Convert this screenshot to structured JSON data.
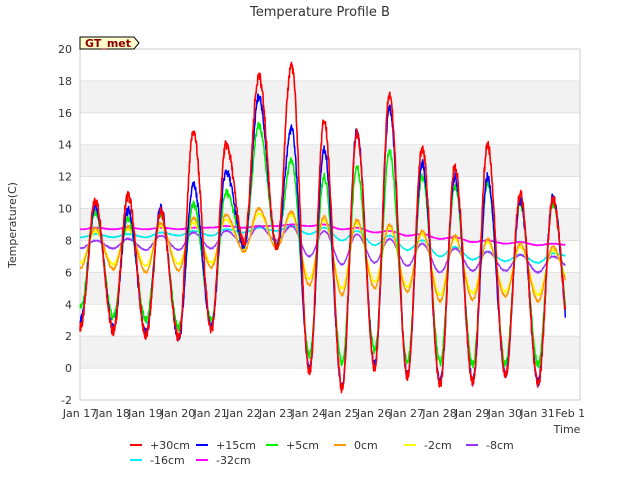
{
  "chart_data": {
    "type": "line",
    "title": "Temperature Profile B",
    "xlabel": "Time",
    "ylabel": "Temperature(C)",
    "annotation": "GT_met",
    "ylim": [
      -2,
      20
    ],
    "yticks": [
      -2,
      0,
      2,
      4,
      6,
      8,
      10,
      12,
      14,
      16,
      18,
      20
    ],
    "xlim": [
      0,
      15.3
    ],
    "xticks": [
      0,
      1,
      2,
      3,
      4,
      5,
      6,
      7,
      8,
      9,
      10,
      11,
      12,
      13,
      14,
      15
    ],
    "xtick_labels": [
      "Jan 17",
      "Jan 18",
      "Jan 19",
      "Jan 20",
      "Jan 21",
      "Jan 22",
      "Jan 23",
      "Jan 24",
      "Jan 25",
      "Jan 26",
      "Jan 27",
      "Jan 28",
      "Jan 29",
      "Jan 30",
      "Jan 31",
      "Feb 1"
    ],
    "x_end": 14.85,
    "grid": "horizontal bands",
    "legend_placement": "bottom",
    "daily_peak_time": 0.47,
    "series": [
      {
        "name": "+30cm",
        "color": "#ff0000",
        "width": 1.6,
        "peaks": [
          10.5,
          10.8,
          9.8,
          14.8,
          14.0,
          18.3,
          19.0,
          15.5,
          14.7,
          17.1,
          13.8,
          12.6,
          14.0,
          10.9,
          10.6
        ],
        "mins": [
          2.6,
          2.3,
          2.0,
          1.9,
          2.4,
          7.8,
          7.5,
          -0.3,
          -1.3,
          0.0,
          -0.5,
          -1.1,
          -0.9,
          -0.5,
          -1.0,
          1.6
        ]
      },
      {
        "name": "+15cm",
        "color": "#0000ff",
        "width": 1.5,
        "peaks": [
          10.2,
          9.9,
          10.0,
          11.5,
          12.3,
          17.0,
          15.0,
          13.7,
          14.9,
          16.3,
          12.8,
          12.0,
          12.0,
          10.5,
          10.7
        ],
        "mins": [
          3.0,
          2.5,
          2.2,
          1.8,
          2.6,
          7.6,
          7.6,
          -0.1,
          -1.2,
          0.2,
          -0.4,
          -0.9,
          -0.8,
          -0.4,
          -0.9,
          1.4
        ]
      },
      {
        "name": "+5cm",
        "color": "#00ee00",
        "width": 1.5,
        "peaks": [
          9.8,
          9.4,
          9.7,
          10.3,
          11.0,
          15.2,
          13.0,
          12.0,
          12.6,
          13.6,
          12.0,
          11.4,
          11.6,
          10.3,
          10.3
        ],
        "mins": [
          3.8,
          3.2,
          3.0,
          2.5,
          3.0,
          7.7,
          7.7,
          0.8,
          0.3,
          1.1,
          0.4,
          0.3,
          0.2,
          0.3,
          0.2,
          2.2
        ]
      },
      {
        "name": "0cm",
        "color": "#ff9900",
        "width": 1.4,
        "peaks": [
          8.8,
          8.9,
          9.1,
          9.4,
          9.6,
          10.0,
          9.8,
          9.5,
          9.3,
          9.0,
          8.6,
          8.3,
          8.1,
          7.8,
          7.6
        ],
        "mins": [
          6.3,
          6.2,
          6.0,
          6.1,
          6.3,
          7.3,
          7.5,
          5.2,
          4.6,
          5.0,
          4.8,
          4.2,
          4.3,
          4.5,
          4.2,
          5.0
        ]
      },
      {
        "name": "-2cm",
        "color": "#ffff00",
        "width": 1.4,
        "peaks": [
          8.6,
          8.7,
          8.9,
          9.1,
          9.3,
          9.7,
          9.6,
          9.3,
          9.1,
          8.8,
          8.4,
          8.1,
          7.9,
          7.6,
          7.4
        ],
        "mins": [
          6.6,
          6.5,
          6.4,
          6.5,
          6.6,
          7.4,
          7.6,
          5.6,
          5.0,
          5.4,
          5.1,
          4.6,
          4.7,
          4.8,
          4.6,
          5.3
        ]
      },
      {
        "name": "-8cm",
        "color": "#9933ff",
        "width": 1.4,
        "peaks": [
          8.0,
          8.1,
          8.3,
          8.5,
          8.6,
          8.9,
          8.9,
          8.6,
          8.4,
          8.1,
          7.8,
          7.5,
          7.3,
          7.1,
          7.0
        ],
        "mins": [
          7.5,
          7.5,
          7.4,
          7.4,
          7.5,
          7.8,
          8.0,
          7.0,
          6.5,
          6.6,
          6.4,
          6.0,
          6.1,
          6.1,
          6.0,
          6.3
        ]
      },
      {
        "name": "-16cm",
        "color": "#00eeee",
        "width": 1.4,
        "peaks": [
          8.4,
          8.4,
          8.5,
          8.6,
          8.7,
          8.8,
          8.9,
          8.8,
          8.6,
          8.3,
          8.0,
          7.6,
          7.3,
          7.1,
          7.2
        ],
        "mins": [
          8.2,
          8.2,
          8.2,
          8.3,
          8.3,
          8.5,
          8.6,
          8.4,
          8.0,
          7.7,
          7.4,
          7.0,
          6.8,
          6.7,
          6.6,
          7.0
        ]
      },
      {
        "name": "-32cm",
        "color": "#ff00ff",
        "width": 1.5,
        "peaks": [
          8.8,
          8.8,
          8.8,
          8.8,
          8.9,
          8.9,
          9.0,
          9.0,
          8.8,
          8.6,
          8.4,
          8.2,
          8.0,
          7.9,
          7.8
        ],
        "mins": [
          8.7,
          8.7,
          8.7,
          8.7,
          8.8,
          8.8,
          8.9,
          8.9,
          8.7,
          8.5,
          8.3,
          8.1,
          7.9,
          7.8,
          7.7,
          7.7
        ]
      }
    ]
  }
}
